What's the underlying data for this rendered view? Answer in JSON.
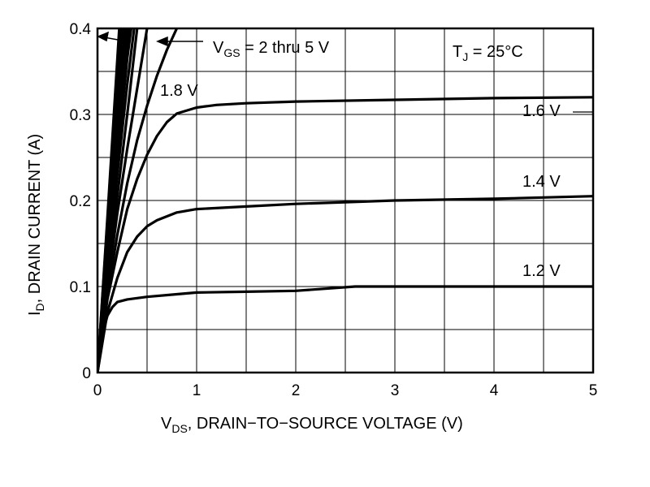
{
  "chart_data": {
    "type": "line",
    "title": "",
    "xlabel": {
      "main": "V",
      "sub": "DS",
      "rest": ", DRAIN−TO−SOURCE VOLTAGE (V)"
    },
    "ylabel": {
      "main": "I",
      "sub": "D",
      "rest": ", DRAIN CURRENT (A)"
    },
    "xlim": [
      0,
      5
    ],
    "ylim": [
      0,
      0.4
    ],
    "xticks": [
      0,
      1,
      2,
      3,
      4,
      5
    ],
    "xtick_labels": [
      "0",
      "1",
      "2",
      "3",
      "4",
      "5"
    ],
    "yticks": [
      0,
      0.1,
      0.2,
      0.3,
      0.4
    ],
    "ytick_labels": [
      "0",
      "0.1",
      "0.2",
      "0.3",
      "0.4"
    ],
    "grid": true,
    "annotations": {
      "vgs_range": {
        "main": "V",
        "sub": "GS",
        "rest": " = 2 thru 5 V"
      },
      "temperature": {
        "main": "T",
        "sub": "J",
        "rest": " = 25°C"
      }
    },
    "series": [
      {
        "name": "1.2 V",
        "x": [
          0,
          0.05,
          0.1,
          0.15,
          0.2,
          0.3,
          0.5,
          0.8,
          1.0,
          1.5,
          2.0,
          2.6,
          3.0,
          4.0,
          5.0
        ],
        "y": [
          0,
          0.045,
          0.066,
          0.076,
          0.082,
          0.085,
          0.088,
          0.091,
          0.093,
          0.094,
          0.095,
          0.1,
          0.1,
          0.1,
          0.1
        ]
      },
      {
        "name": "1.4 V",
        "x": [
          0,
          0.1,
          0.2,
          0.3,
          0.4,
          0.5,
          0.6,
          0.8,
          1.0,
          1.5,
          2.0,
          2.5,
          3.0,
          4.0,
          5.0
        ],
        "y": [
          0,
          0.07,
          0.11,
          0.14,
          0.158,
          0.17,
          0.177,
          0.186,
          0.19,
          0.193,
          0.196,
          0.198,
          0.2,
          0.202,
          0.205
        ]
      },
      {
        "name": "1.6 V",
        "x": [
          0,
          0.1,
          0.2,
          0.3,
          0.4,
          0.5,
          0.6,
          0.7,
          0.8,
          1.0,
          1.2,
          1.5,
          2.0,
          3.0,
          4.0,
          5.0
        ],
        "y": [
          0,
          0.085,
          0.14,
          0.19,
          0.225,
          0.253,
          0.275,
          0.291,
          0.301,
          0.308,
          0.311,
          0.313,
          0.315,
          0.317,
          0.319,
          0.32
        ]
      },
      {
        "name": "1.8 V",
        "x": [
          0,
          0.1,
          0.2,
          0.3,
          0.4,
          0.5,
          0.6,
          0.7,
          0.8
        ],
        "y": [
          0,
          0.09,
          0.16,
          0.22,
          0.27,
          0.31,
          0.345,
          0.375,
          0.4
        ]
      },
      {
        "name": "",
        "x": [
          0,
          0.1,
          0.2,
          0.3,
          0.4,
          0.5
        ],
        "y": [
          0,
          0.1,
          0.185,
          0.26,
          0.33,
          0.4
        ]
      },
      {
        "name": "",
        "x": [
          0,
          0.1,
          0.2,
          0.3,
          0.4
        ],
        "y": [
          0,
          0.11,
          0.205,
          0.3,
          0.4
        ]
      },
      {
        "name": "",
        "x": [
          0,
          0.1,
          0.2,
          0.3,
          0.37
        ],
        "y": [
          0,
          0.12,
          0.23,
          0.335,
          0.4
        ]
      },
      {
        "name": "",
        "x": [
          0,
          0.1,
          0.2,
          0.3,
          0.34
        ],
        "y": [
          0,
          0.13,
          0.25,
          0.365,
          0.4
        ]
      },
      {
        "name": "",
        "x": [
          0,
          0.1,
          0.2,
          0.3,
          0.32
        ],
        "y": [
          0,
          0.14,
          0.27,
          0.385,
          0.4
        ]
      },
      {
        "name": "",
        "x": [
          0,
          0.1,
          0.2,
          0.3
        ],
        "y": [
          0,
          0.145,
          0.28,
          0.4
        ]
      },
      {
        "name": "",
        "x": [
          0,
          0.1,
          0.2,
          0.28
        ],
        "y": [
          0,
          0.15,
          0.29,
          0.4
        ]
      },
      {
        "name": "",
        "x": [
          0,
          0.1,
          0.2,
          0.27
        ],
        "y": [
          0,
          0.155,
          0.3,
          0.4
        ]
      },
      {
        "name": "",
        "x": [
          0,
          0.1,
          0.2,
          0.26
        ],
        "y": [
          0,
          0.16,
          0.31,
          0.4
        ]
      },
      {
        "name": "",
        "x": [
          0,
          0.1,
          0.2,
          0.25
        ],
        "y": [
          0,
          0.165,
          0.32,
          0.4
        ]
      },
      {
        "name": "",
        "x": [
          0,
          0.1,
          0.2,
          0.24
        ],
        "y": [
          0,
          0.17,
          0.33,
          0.4
        ]
      },
      {
        "name": "",
        "x": [
          0,
          0.1,
          0.2,
          0.23
        ],
        "y": [
          0,
          0.175,
          0.345,
          0.4
        ]
      },
      {
        "name": "",
        "x": [
          0,
          0.1,
          0.22
        ],
        "y": [
          0,
          0.18,
          0.4
        ]
      }
    ]
  }
}
